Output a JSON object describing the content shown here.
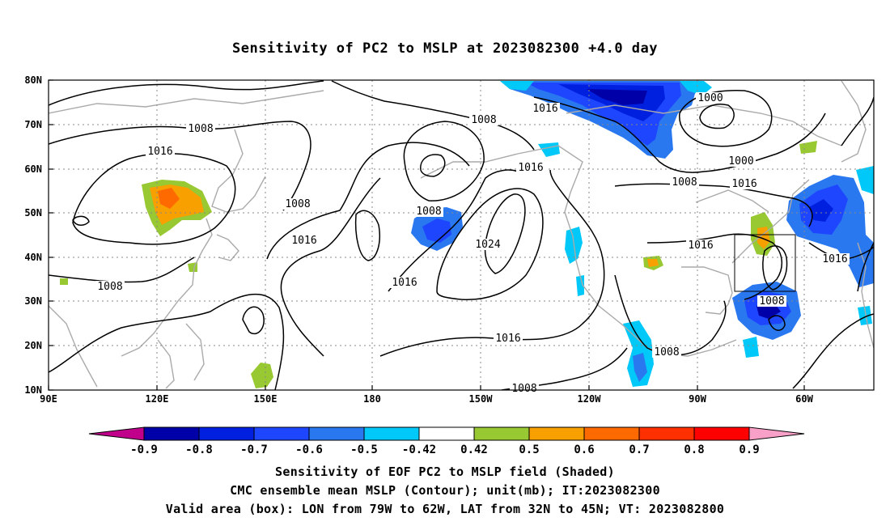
{
  "title": "Sensitivity of PC2 to MSLP at 2023082300 +4.0 day",
  "lat_labels": [
    "80N",
    "70N",
    "60N",
    "50N",
    "40N",
    "30N",
    "20N",
    "10N"
  ],
  "lon_labels": [
    "90E",
    "120E",
    "150E",
    "180",
    "150W",
    "120W",
    "90W",
    "60W"
  ],
  "contour_labels": [
    {
      "text": "1008"
    },
    {
      "text": "1016"
    },
    {
      "text": "1008"
    },
    {
      "text": "1008"
    },
    {
      "text": "1016"
    },
    {
      "text": "1008"
    },
    {
      "text": "1016"
    },
    {
      "text": "1008"
    },
    {
      "text": "1024"
    },
    {
      "text": "1016"
    },
    {
      "text": "1016"
    },
    {
      "text": "1000"
    },
    {
      "text": "1000"
    },
    {
      "text": "1008"
    },
    {
      "text": "1016"
    },
    {
      "text": "1016"
    },
    {
      "text": "1016"
    },
    {
      "text": "1008"
    },
    {
      "text": "1016"
    },
    {
      "text": "1008"
    },
    {
      "text": "1008"
    }
  ],
  "colorbar": {
    "labels": [
      "-0.9",
      "-0.8",
      "-0.7",
      "-0.6",
      "-0.5",
      "-0.42",
      "0.42",
      "0.5",
      "0.6",
      "0.7",
      "0.8",
      "0.9"
    ],
    "colors": [
      "#c0008a",
      "#0000a8",
      "#0020e0",
      "#1e46ff",
      "#2a78f0",
      "#00c8f8",
      "#ffffff",
      "#98c832",
      "#f8a000",
      "#ff6a00",
      "#ff3000",
      "#ff0000",
      "#f8a0c8"
    ]
  },
  "captions": [
    "Sensitivity of EOF PC2 to MSLP field (Shaded)",
    "CMC ensemble mean MSLP (Contour); unit(mb); IT:2023082300",
    "Valid area (box): LON from 79W to 62W, LAT from 32N to 45N; VT: 2023082800"
  ]
}
